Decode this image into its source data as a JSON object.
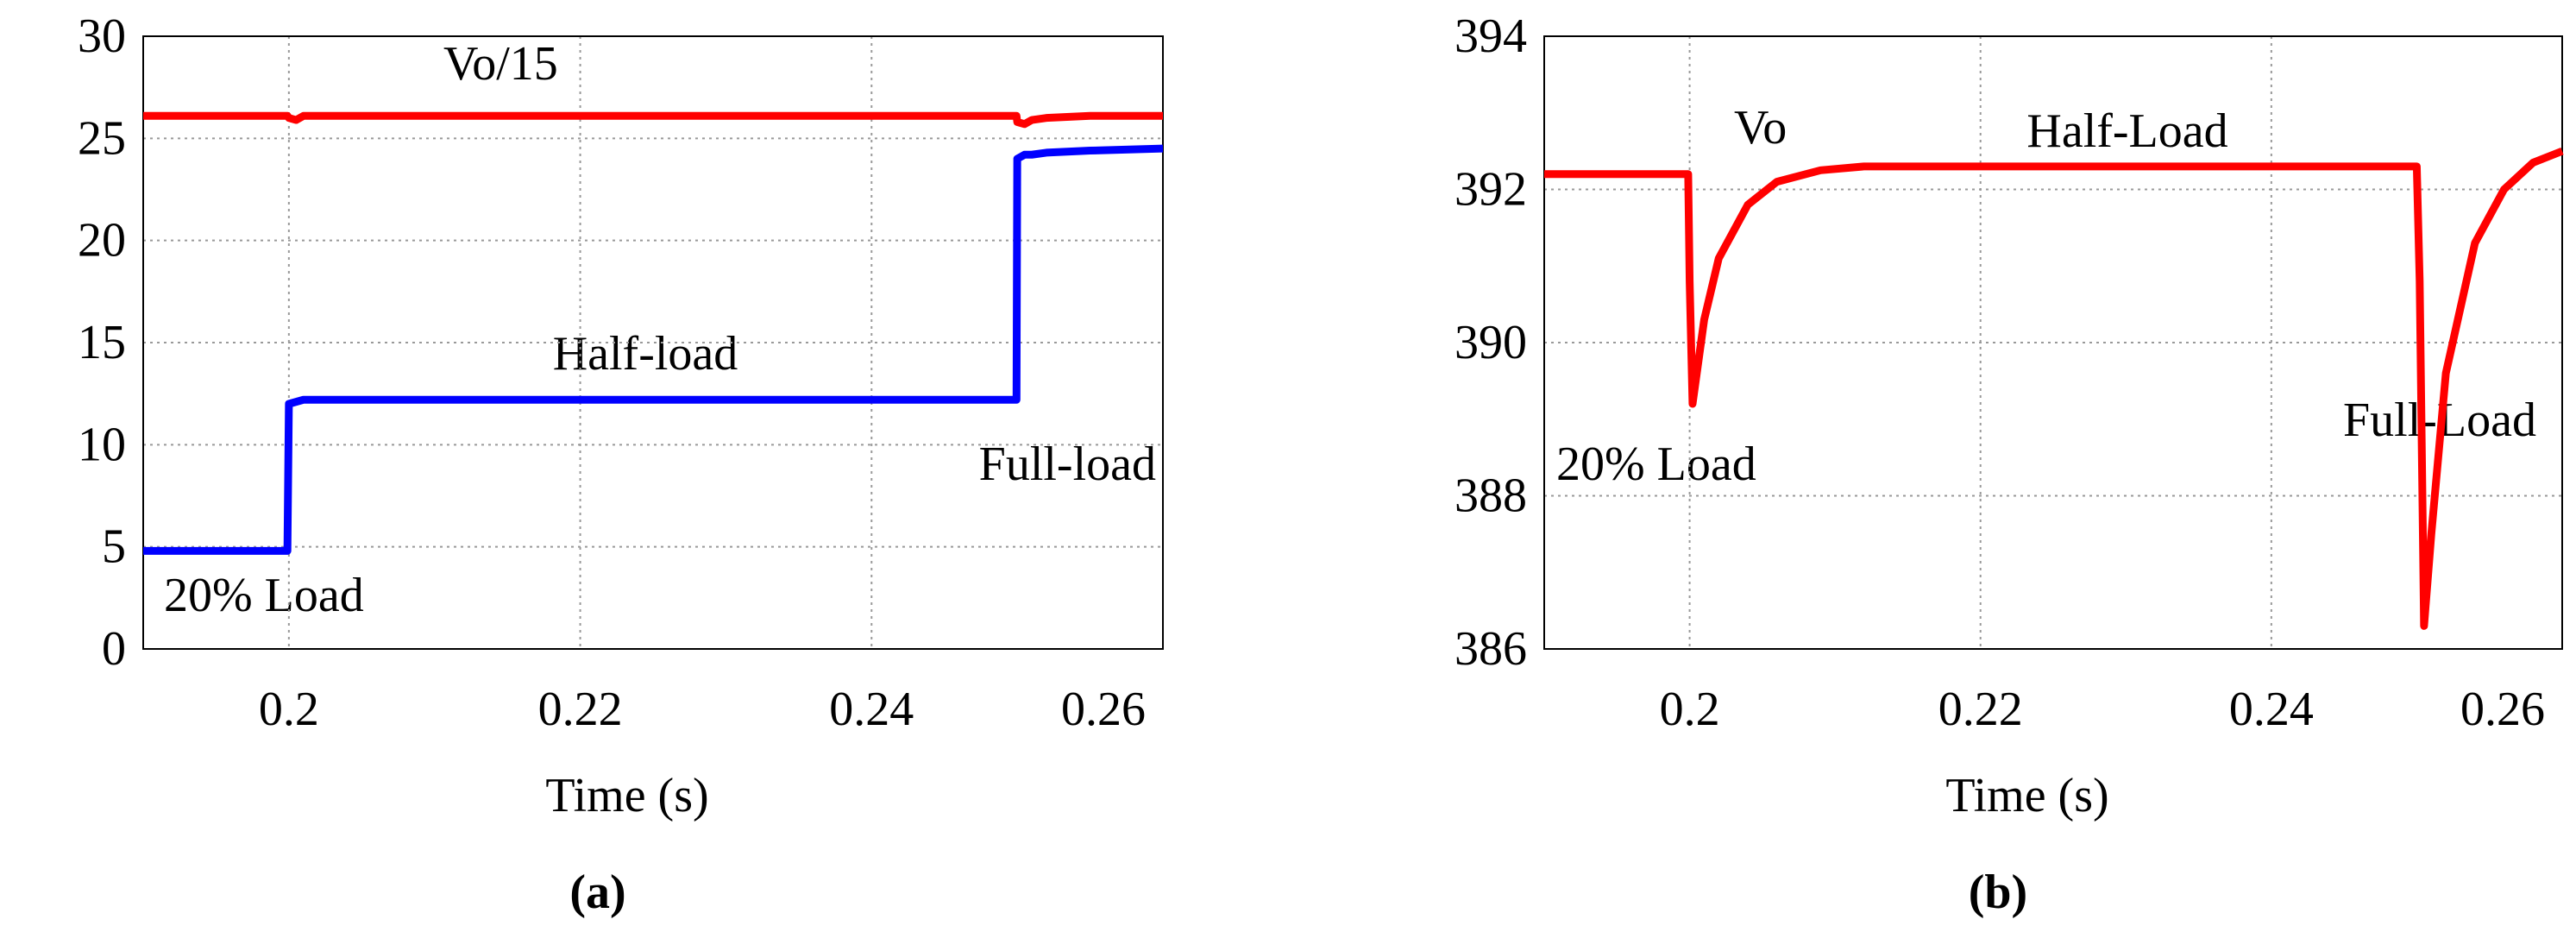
{
  "chart_data": [
    {
      "type": "line",
      "xlabel": "Time (s)",
      "caption": "(a)",
      "xlim": [
        0.19,
        0.26
      ],
      "xticks": [
        0.2,
        0.22,
        0.24,
        0.26
      ],
      "ylim": [
        0,
        30
      ],
      "yticks": [
        0,
        5,
        10,
        15,
        20,
        25,
        30
      ],
      "grid": true,
      "x": [
        0.19,
        0.1999,
        0.2,
        0.2005,
        0.201,
        0.24995,
        0.25,
        0.2505,
        0.251,
        0.252,
        0.255,
        0.26
      ],
      "series": [
        {
          "name": "Vo/15",
          "color": "#ff0000",
          "values": [
            26.1,
            26.1,
            26.0,
            25.9,
            26.1,
            26.1,
            25.8,
            25.7,
            25.9,
            26.0,
            26.1,
            26.1
          ]
        },
        {
          "name": "Load",
          "color": "#0000ff",
          "values": [
            4.8,
            4.8,
            12.0,
            12.1,
            12.2,
            12.2,
            24.0,
            24.2,
            24.2,
            24.3,
            24.4,
            24.5
          ]
        }
      ],
      "annotations": [
        "Vo/15",
        "Half-load",
        "Full-load",
        "20% Load"
      ]
    },
    {
      "type": "line",
      "xlabel": "Time (s)",
      "caption": "(b)",
      "xlim": [
        0.19,
        0.26
      ],
      "xticks": [
        0.2,
        0.22,
        0.24,
        0.26
      ],
      "ylim": [
        386,
        394
      ],
      "yticks": [
        386,
        388,
        390,
        392,
        394
      ],
      "grid": true,
      "x": [
        0.19,
        0.1999,
        0.2,
        0.2002,
        0.201,
        0.202,
        0.204,
        0.206,
        0.209,
        0.212,
        0.25,
        0.2502,
        0.2505,
        0.251,
        0.252,
        0.254,
        0.256,
        0.258,
        0.26
      ],
      "series": [
        {
          "name": "Vo",
          "color": "#ff0000",
          "values": [
            392.2,
            392.2,
            390.8,
            389.2,
            390.3,
            391.1,
            391.8,
            392.1,
            392.25,
            392.3,
            392.3,
            390.8,
            386.3,
            387.5,
            389.6,
            391.3,
            392.0,
            392.35,
            392.5
          ]
        }
      ],
      "annotations": [
        "Vo",
        "Half-Load",
        "Full-Load",
        "20% Load"
      ]
    }
  ]
}
